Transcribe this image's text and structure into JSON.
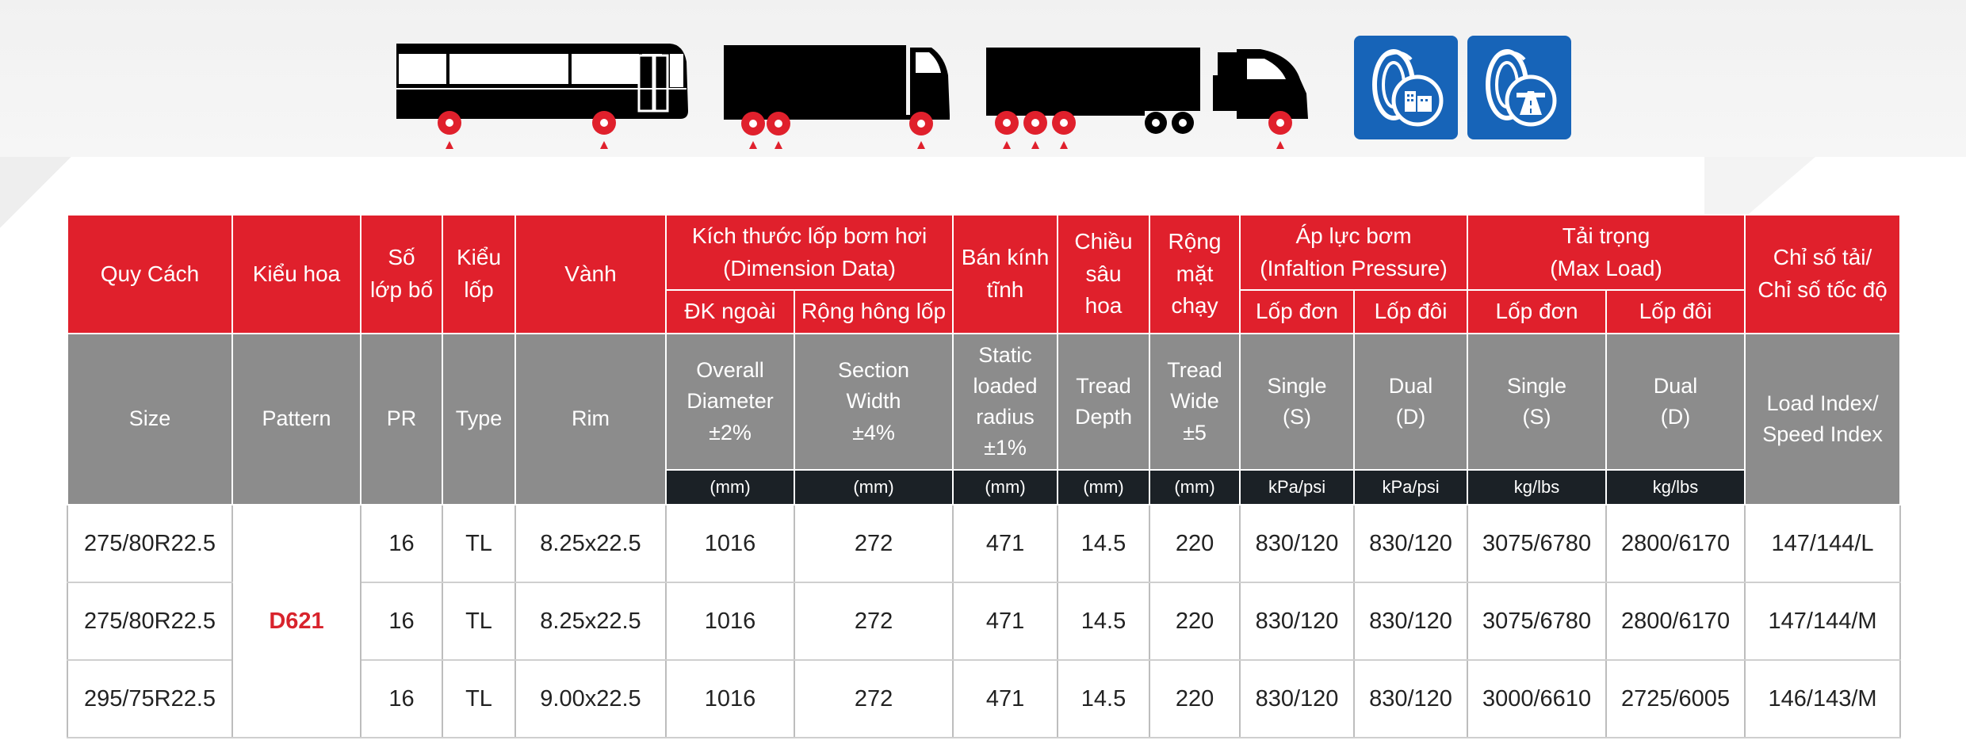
{
  "header_row1": {
    "size": "Quy Cách",
    "pattern": "Kiểu hoa",
    "pr": [
      "Số",
      "lớp bố"
    ],
    "type": [
      "Kiểu",
      "lốp"
    ],
    "rim": "Vành",
    "dimension": [
      "Kích thước lốp bơm hơi",
      "(Dimension Data)"
    ],
    "radius": [
      "Bán kính",
      "tĩnh"
    ],
    "depth": [
      "Chiều",
      "sâu",
      "hoa"
    ],
    "width": [
      "Rộng",
      "mặt",
      "chạy"
    ],
    "pressure": [
      "Áp lực bơm",
      "(Infaltion Pressure)"
    ],
    "load": [
      "Tải trọng",
      "(Max Load)"
    ],
    "index": [
      "Chỉ số tải/",
      "Chỉ số tốc độ"
    ]
  },
  "header_row2": {
    "diameter": "ĐK ngoài",
    "section": "Rộng hông lốp",
    "press_single": "Lốp đơn",
    "press_dual": "Lốp đôi",
    "load_single": "Lốp đơn",
    "load_dual": "Lốp đôi"
  },
  "header_en": {
    "size": "Size",
    "pattern": "Pattern",
    "pr": "PR",
    "type": "Type",
    "rim": "Rim",
    "diameter": [
      "Overall",
      "Diameter",
      "±2%"
    ],
    "section": [
      "Section",
      "Width",
      "±4%"
    ],
    "radius": [
      "Static",
      "loaded",
      "radius",
      "±1%"
    ],
    "depth": [
      "Tread",
      "Depth"
    ],
    "width": [
      "Tread",
      "Wide",
      "±5"
    ],
    "press_single": [
      "Single",
      "(S)"
    ],
    "press_dual": [
      "Dual",
      "(D)"
    ],
    "load_single": [
      "Single",
      "(S)"
    ],
    "load_dual": [
      "Dual",
      "(D)"
    ],
    "index": [
      "Load Index/",
      "Speed Index"
    ]
  },
  "units": [
    "(mm)",
    "(mm)",
    "(mm)",
    "(mm)",
    "(mm)",
    "kPa/psi",
    "kPa/psi",
    "kg/lbs",
    "kg/lbs"
  ],
  "pattern_name": "D621",
  "rows": [
    {
      "size": "275/80R22.5",
      "pr": "16",
      "type": "TL",
      "rim": "8.25x22.5",
      "diameter": "1016",
      "section": "272",
      "radius": "471",
      "depth": "14.5",
      "width": "220",
      "press_single": "830/120",
      "press_dual": "830/120",
      "load_single": "3075/6780",
      "load_dual": "2800/6170",
      "index": "147/144/L"
    },
    {
      "size": "275/80R22.5",
      "pr": "16",
      "type": "TL",
      "rim": "8.25x22.5",
      "diameter": "1016",
      "section": "272",
      "radius": "471",
      "depth": "14.5",
      "width": "220",
      "press_single": "830/120",
      "press_dual": "830/120",
      "load_single": "3075/6780",
      "load_dual": "2800/6170",
      "index": "147/144/M"
    },
    {
      "size": "295/75R22.5",
      "pr": "16",
      "type": "TL",
      "rim": "9.00x22.5",
      "diameter": "1016",
      "section": "272",
      "radius": "471",
      "depth": "14.5",
      "width": "220",
      "press_single": "830/120",
      "press_dual": "830/120",
      "load_single": "3000/6610",
      "load_dual": "2725/6005",
      "index": "146/143/M"
    }
  ],
  "icons": {
    "vehicles": [
      "bus-icon",
      "box-truck-icon",
      "semi-truck-icon"
    ],
    "badges": [
      "urban-tire-icon",
      "highway-tire-icon"
    ]
  },
  "colors": {
    "header_red": "#e0202c",
    "header_grey": "#8c8c8c",
    "unit_bar": "#1b2126",
    "badge_blue": "#1764b8",
    "pattern_red": "#d8232c",
    "wheel_red": "#e0202c"
  }
}
